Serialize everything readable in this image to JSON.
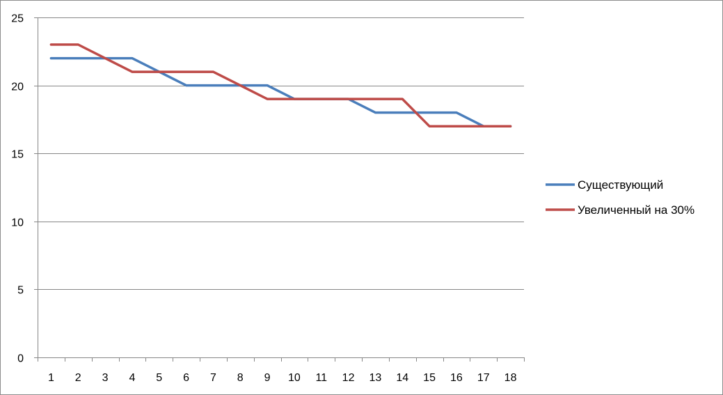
{
  "chart_data": {
    "type": "line",
    "categories": [
      "1",
      "2",
      "3",
      "4",
      "5",
      "6",
      "7",
      "8",
      "9",
      "10",
      "11",
      "12",
      "13",
      "14",
      "15",
      "16",
      "17",
      "18"
    ],
    "ylim": [
      0,
      25
    ],
    "yticks": [
      0,
      5,
      10,
      15,
      20,
      25
    ],
    "grid": true,
    "legend_position": "right",
    "series": [
      {
        "name": "Существующий",
        "color": "#4a7ebb",
        "values": [
          22,
          22,
          22,
          22,
          21,
          20,
          20,
          20,
          20,
          19,
          19,
          19,
          18,
          18,
          18,
          18,
          17,
          17
        ]
      },
      {
        "name": "Увеличенный на 30%",
        "color": "#be4b48",
        "values": [
          23,
          23,
          22,
          21,
          21,
          21,
          21,
          20,
          19,
          19,
          19,
          19,
          19,
          19,
          17,
          17,
          17,
          17
        ]
      }
    ]
  }
}
